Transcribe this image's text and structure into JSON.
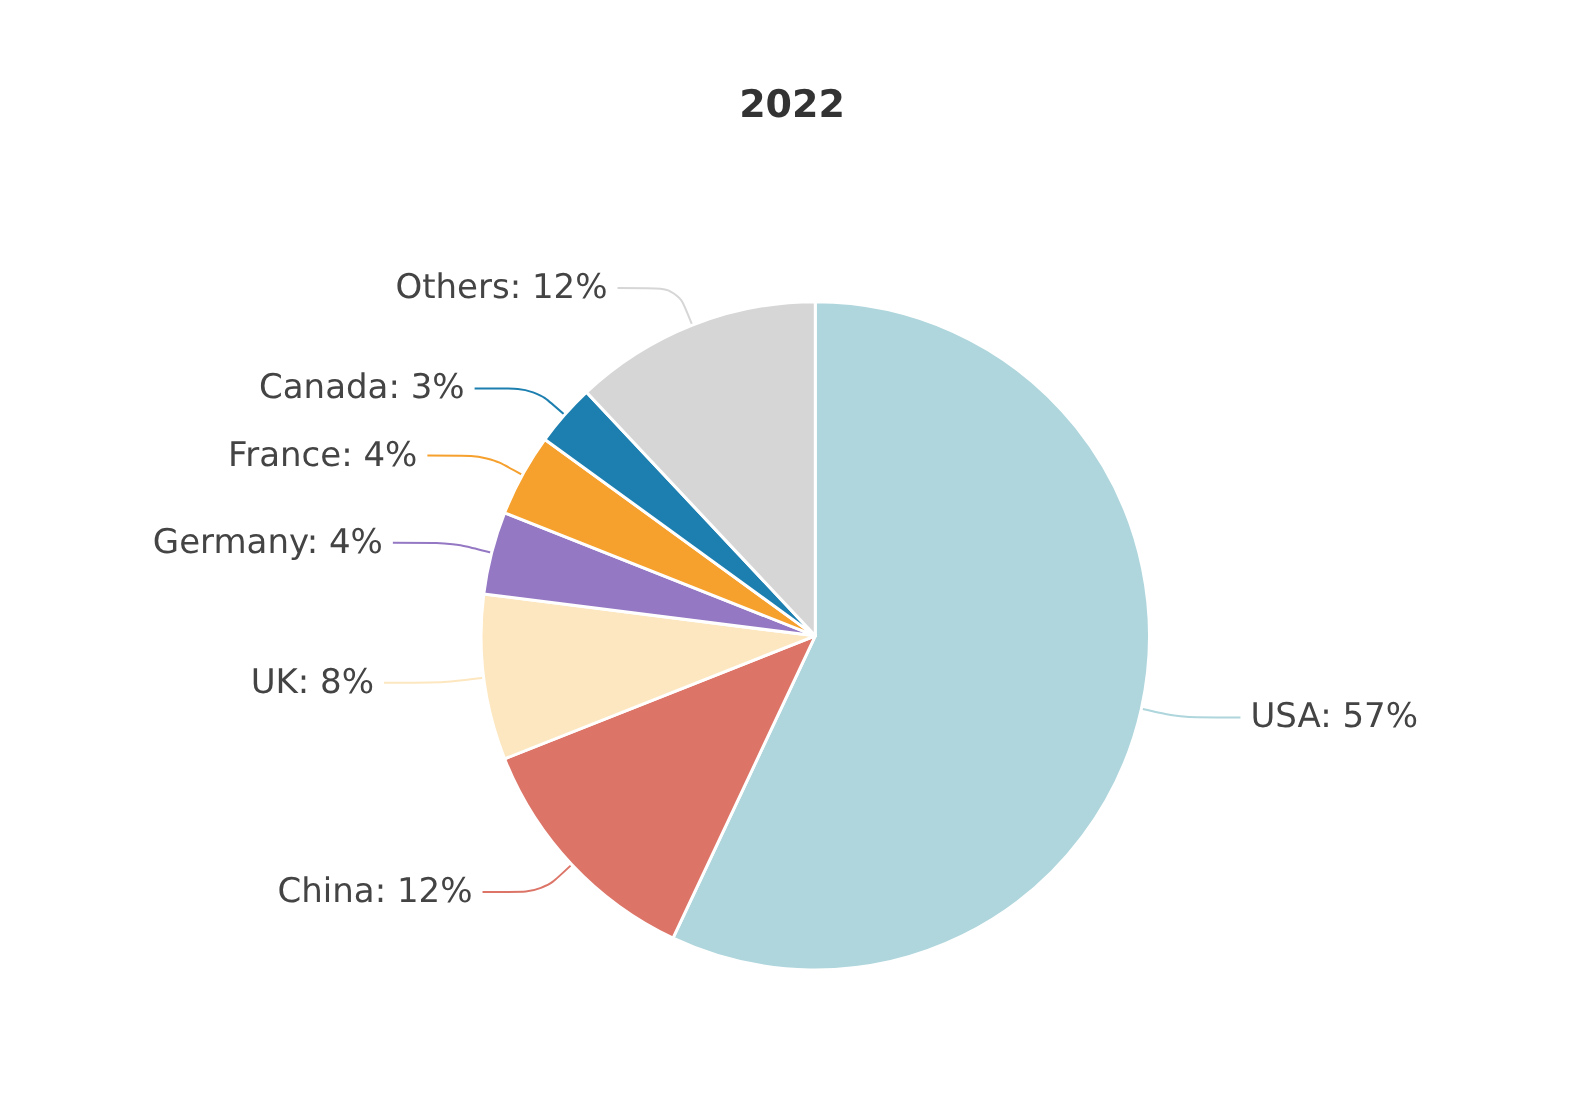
{
  "chart_data": {
    "type": "pie",
    "title": "2022",
    "categories": [
      "USA",
      "China",
      "UK",
      "Germany",
      "France",
      "Canada",
      "Others"
    ],
    "values": [
      57,
      12,
      8,
      4,
      4,
      3,
      12
    ],
    "value_labels": [
      "57%",
      "12%",
      "8%",
      "4%",
      "4%",
      "3%",
      "12%"
    ],
    "colors": [
      "#aed6dc",
      "#dc7568",
      "#fde7c0",
      "#9478c4",
      "#f6a02d",
      "#1d7faf",
      "#d6d6d6"
    ],
    "legend": false
  }
}
